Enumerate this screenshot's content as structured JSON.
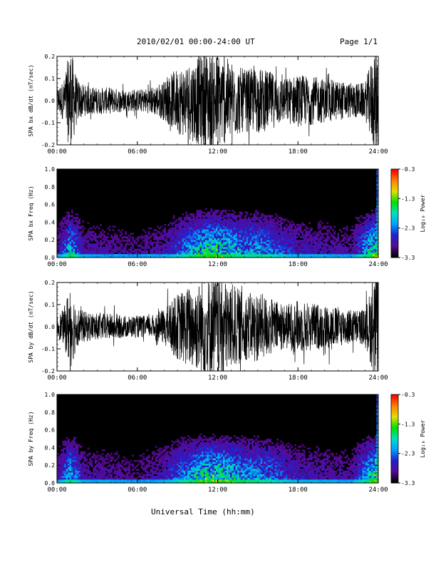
{
  "header": {
    "title": "2010/02/01   00:00-24:00 UT",
    "page": "Page 1/1"
  },
  "footer": {
    "xlabel": "Universal Time (hh:mm)"
  },
  "colors": {
    "background": "#ffffff",
    "spectrogram_background": "#000000",
    "trace": "#000000",
    "colormap": [
      "#000000",
      "#5a0a9a",
      "#2020d0",
      "#00a0ff",
      "#00e0c0",
      "#00e000",
      "#e0e000",
      "#ff8000",
      "#ff0000"
    ]
  },
  "chart_data": [
    {
      "type": "line",
      "title": "",
      "ylabel": "SPA bx dB/dt (nT/sec)",
      "xlabel": "",
      "x_ticks": [
        "00:00",
        "06:00",
        "12:00",
        "18:00",
        "24:00"
      ],
      "xlim": [
        0,
        24
      ],
      "ylim": [
        -0.2,
        0.2
      ],
      "y_ticks": [
        "-0.2",
        "-0.1",
        "0.0",
        "0.1",
        "0.2"
      ],
      "envelope": {
        "x_hours": [
          0,
          0.5,
          1,
          1.5,
          2,
          3,
          4,
          5,
          6,
          7,
          8,
          9,
          10,
          11,
          12,
          13,
          14,
          15,
          16,
          17,
          18,
          19,
          20,
          21,
          22,
          23,
          23.8,
          24
        ],
        "amplitude": [
          0.06,
          0.09,
          0.25,
          0.1,
          0.07,
          0.06,
          0.06,
          0.05,
          0.05,
          0.06,
          0.09,
          0.15,
          0.18,
          0.22,
          0.22,
          0.18,
          0.14,
          0.15,
          0.13,
          0.1,
          0.12,
          0.11,
          0.1,
          0.09,
          0.08,
          0.08,
          0.25,
          0.25
        ]
      },
      "grid": false
    },
    {
      "type": "heatmap",
      "title": "",
      "ylabel": "SPA bx Freq (Hz)",
      "xlabel": "",
      "x_ticks": [
        "00:00",
        "06:00",
        "12:00",
        "18:00",
        "24:00"
      ],
      "xlim": [
        0,
        24
      ],
      "ylim": [
        0,
        1.0
      ],
      "y_ticks": [
        "0.0",
        "0.2",
        "0.4",
        "0.6",
        "0.8",
        "1.0"
      ],
      "colorbar": {
        "label": "Log₁₀ Power",
        "ticks": [
          "-0.3",
          "-1.3",
          "-2.3",
          "-3.3"
        ],
        "range": [
          -3.3,
          -0.3
        ]
      },
      "activity": {
        "x_hours": [
          0,
          1,
          2,
          4,
          6,
          8,
          9,
          10,
          11,
          12,
          13,
          14,
          15,
          16,
          17,
          18,
          20,
          22,
          23.8,
          24
        ],
        "level": [
          0.2,
          0.8,
          0.3,
          0.25,
          0.2,
          0.3,
          0.5,
          0.7,
          0.9,
          0.95,
          0.8,
          0.65,
          0.7,
          0.6,
          0.45,
          0.35,
          0.3,
          0.25,
          1.0,
          1.0
        ]
      }
    },
    {
      "type": "line",
      "title": "",
      "ylabel": "SPA by dB/dt (nT/sec)",
      "xlabel": "",
      "x_ticks": [
        "00:00",
        "06:00",
        "12:00",
        "18:00",
        "24:00"
      ],
      "xlim": [
        0,
        24
      ],
      "ylim": [
        -0.2,
        0.2
      ],
      "y_ticks": [
        "-0.2",
        "-0.1",
        "0.0",
        "0.1",
        "0.2"
      ],
      "envelope": {
        "x_hours": [
          0,
          0.5,
          1,
          1.5,
          2,
          3,
          4,
          5,
          6,
          7,
          8,
          9,
          10,
          11,
          12,
          13,
          14,
          15,
          16,
          17,
          18,
          19,
          20,
          21,
          22,
          23,
          23.8,
          24
        ],
        "amplitude": [
          0.05,
          0.08,
          0.2,
          0.09,
          0.07,
          0.06,
          0.06,
          0.05,
          0.05,
          0.05,
          0.08,
          0.15,
          0.19,
          0.22,
          0.23,
          0.2,
          0.15,
          0.16,
          0.13,
          0.1,
          0.12,
          0.11,
          0.1,
          0.09,
          0.08,
          0.08,
          0.25,
          0.25
        ]
      },
      "grid": false
    },
    {
      "type": "heatmap",
      "title": "",
      "ylabel": "SPA by Freq (Hz)",
      "xlabel": "Universal Time (hh:mm)",
      "x_ticks": [
        "00:00",
        "06:00",
        "12:00",
        "18:00",
        "24:00"
      ],
      "xlim": [
        0,
        24
      ],
      "ylim": [
        0,
        1.0
      ],
      "y_ticks": [
        "0.0",
        "0.2",
        "0.4",
        "0.6",
        "0.8",
        "1.0"
      ],
      "colorbar": {
        "label": "Log₁₀ Power",
        "ticks": [
          "-0.3",
          "-1.3",
          "-2.3",
          "-3.3"
        ],
        "range": [
          -3.3,
          -0.3
        ]
      },
      "activity": {
        "x_hours": [
          0,
          1,
          2,
          4,
          6,
          8,
          9,
          10,
          11,
          12,
          13,
          14,
          15,
          16,
          17,
          18,
          20,
          22,
          23.8,
          24
        ],
        "level": [
          0.2,
          0.8,
          0.3,
          0.25,
          0.2,
          0.35,
          0.55,
          0.75,
          0.9,
          0.95,
          0.85,
          0.7,
          0.7,
          0.6,
          0.45,
          0.35,
          0.3,
          0.25,
          1.0,
          1.0
        ]
      }
    }
  ]
}
